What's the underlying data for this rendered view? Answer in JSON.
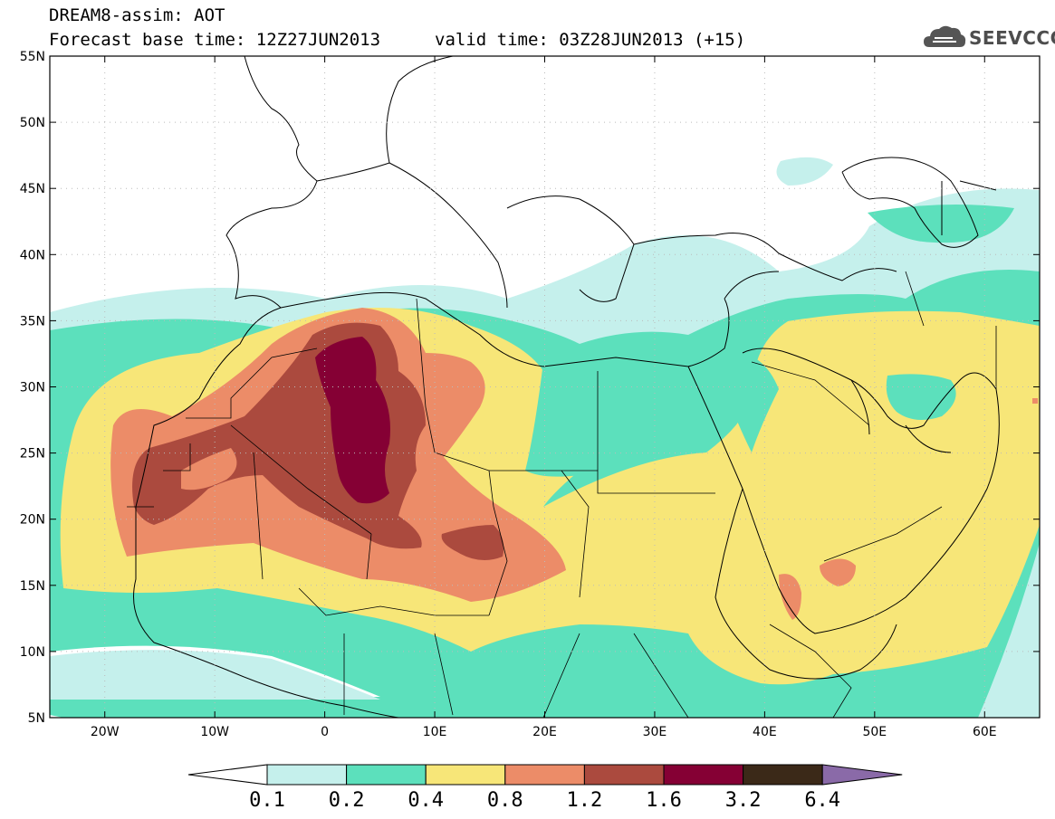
{
  "header": {
    "title": "DREAM8-assim: AOT",
    "base_time": "Forecast base time: 12Z27JUN2013",
    "valid_time": "valid time: 03Z28JUN2013 (+15)"
  },
  "logo": {
    "text": "SEEVCCC",
    "icon": "cloud-icon"
  },
  "axes": {
    "lat_labels": [
      "55N",
      "50N",
      "45N",
      "40N",
      "35N",
      "30N",
      "25N",
      "20N",
      "15N",
      "10N",
      "5N"
    ],
    "lon_labels": [
      "20W",
      "10W",
      "0",
      "10E",
      "20E",
      "30E",
      "40E",
      "50E",
      "60E"
    ],
    "lat_range": [
      5,
      55
    ],
    "lon_range": [
      -25,
      65
    ]
  },
  "legend": {
    "levels": [
      "0.1",
      "0.2",
      "0.4",
      "0.8",
      "1.2",
      "1.6",
      "3.2",
      "6.4"
    ],
    "colors": [
      "#ffffff",
      "#c5f0ec",
      "#5ce0bc",
      "#f7e678",
      "#ec8c68",
      "#ab4a3e",
      "#850034",
      "#3b2918",
      "#8a6aa8"
    ]
  }
}
